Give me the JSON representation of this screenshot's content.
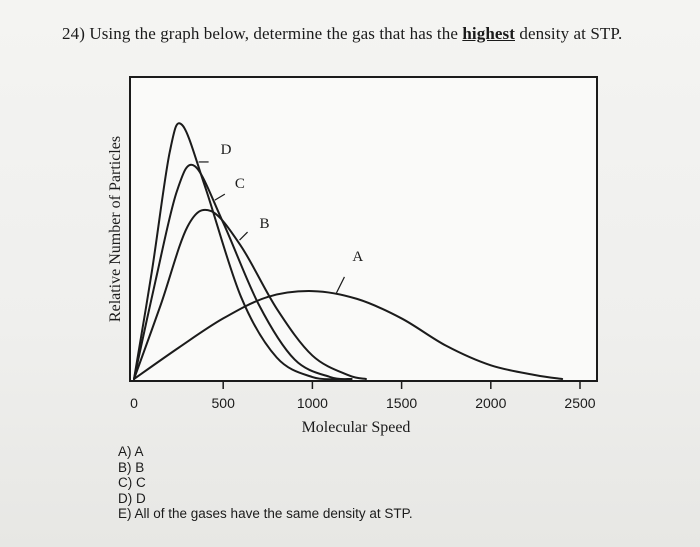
{
  "question": {
    "number": "24)",
    "before": "Using the graph below, determine the gas that has the",
    "emphasis": "highest",
    "after": "density at STP."
  },
  "chart_data": {
    "type": "line",
    "xlabel": "Molecular Speed",
    "ylabel": "Relative Number of Particles",
    "xlim": [
      0,
      2500
    ],
    "xticks": [
      0,
      500,
      1000,
      1500,
      2000,
      2500
    ],
    "grid": false,
    "series": [
      {
        "name": "A",
        "peak_speed": 1050,
        "peak_relative": 0.45,
        "x": [
          0,
          250,
          500,
          750,
          1000,
          1250,
          1500,
          1750,
          2000,
          2250,
          2400
        ],
        "y": [
          0,
          0.16,
          0.31,
          0.42,
          0.45,
          0.41,
          0.31,
          0.17,
          0.07,
          0.02,
          0
        ]
      },
      {
        "name": "B",
        "peak_speed": 430,
        "peak_relative": 0.86,
        "x": [
          0,
          150,
          300,
          430,
          600,
          800,
          1000,
          1200,
          1300
        ],
        "y": [
          0,
          0.38,
          0.78,
          0.86,
          0.68,
          0.36,
          0.12,
          0.02,
          0
        ]
      },
      {
        "name": "C",
        "peak_speed": 340,
        "peak_relative": 1.09,
        "x": [
          0,
          120,
          240,
          340,
          500,
          700,
          900,
          1100,
          1220
        ],
        "y": [
          0,
          0.5,
          0.96,
          1.09,
          0.8,
          0.38,
          0.1,
          0.01,
          0
        ]
      },
      {
        "name": "D",
        "peak_speed": 270,
        "peak_relative": 1.3,
        "x": [
          0,
          100,
          200,
          270,
          400,
          600,
          800,
          1000,
          1150
        ],
        "y": [
          0,
          0.55,
          1.16,
          1.3,
          0.98,
          0.42,
          0.11,
          0.01,
          0
        ]
      }
    ]
  },
  "answers": [
    "A) A",
    "B) B",
    "C) C",
    "D) D",
    "E) All of the gases have the same density at STP."
  ]
}
